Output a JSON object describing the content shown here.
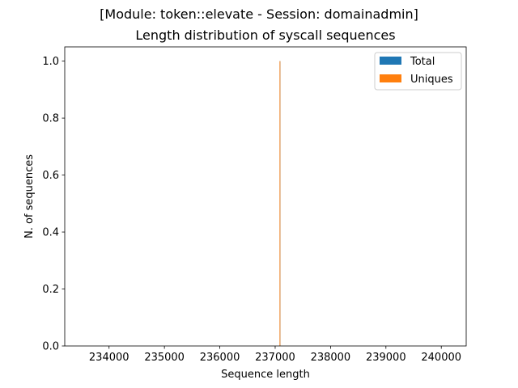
{
  "figure": {
    "suptitle": "[Module: token::elevate - Session: domainadmin]"
  },
  "chart_data": {
    "type": "bar",
    "title": "Length distribution of syscall sequences",
    "xlabel": "Sequence length",
    "ylabel": "N. of sequences",
    "xlim": [
      233200,
      240450
    ],
    "ylim": [
      0,
      1.05
    ],
    "xticks": [
      234000,
      235000,
      236000,
      237000,
      238000,
      239000,
      240000
    ],
    "yticks": [
      0.0,
      0.2,
      0.4,
      0.6,
      0.8,
      1.0
    ],
    "grid": false,
    "legend_placement": "top-right",
    "series": [
      {
        "name": "Total",
        "color": "#1f77b4",
        "bins": [
          {
            "x0": 237080,
            "x1": 237090,
            "value": 1
          }
        ]
      },
      {
        "name": "Uniques",
        "color": "#ff7f0e",
        "bins": [
          {
            "x0": 237080,
            "x1": 237090,
            "value": 1
          }
        ]
      }
    ]
  }
}
